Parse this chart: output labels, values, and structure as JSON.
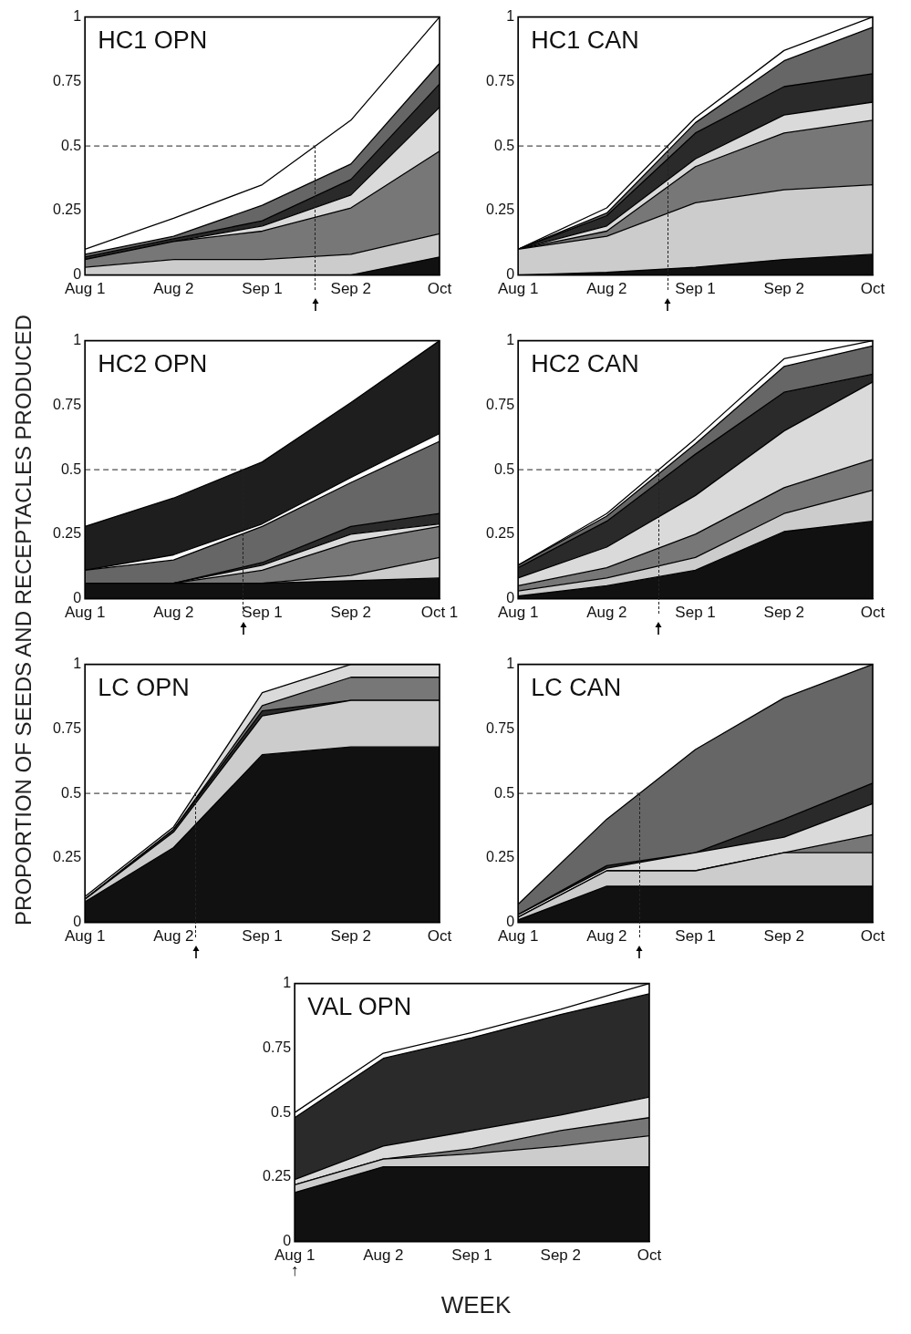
{
  "chart_data": [
    {
      "type": "area",
      "title": "HC1 OPN",
      "ylabel": "PROPORTION OF SEEDS AND RECEPTACLES PRODUCED",
      "stacked": true,
      "categories": [
        "Aug 1",
        "Aug 2",
        "Sep 1",
        "Sep 2",
        "Oct"
      ],
      "ylim": [
        0,
        1
      ],
      "yticks": [
        0,
        0.25,
        0.5,
        0.75,
        1
      ],
      "series": [
        {
          "color": "#111111",
          "values": [
            0,
            0,
            0,
            0,
            0.07
          ]
        },
        {
          "color": "#cccccc",
          "values": [
            0.03,
            0.06,
            0.06,
            0.08,
            0.09
          ]
        },
        {
          "color": "#777777",
          "values": [
            0.03,
            0.07,
            0.11,
            0.18,
            0.32
          ]
        },
        {
          "color": "#dadada",
          "values": [
            0,
            0,
            0.02,
            0.05,
            0.17
          ]
        },
        {
          "color": "#2a2a2a",
          "values": [
            0.01,
            0.01,
            0.02,
            0.06,
            0.09
          ]
        },
        {
          "color": "#666666",
          "values": [
            0.01,
            0.01,
            0.06,
            0.06,
            0.08
          ]
        },
        {
          "color": "#ffffff",
          "values": [
            0.02,
            0.07,
            0.08,
            0.17,
            0.18
          ]
        }
      ],
      "ref_lines": [
        {
          "axis": "y",
          "value": 0.5
        }
      ]
    },
    {
      "type": "area",
      "title": "HC1 CAN",
      "stacked": true,
      "categories": [
        "Aug 1",
        "Aug 2",
        "Sep 1",
        "Sep 2",
        "Oct"
      ],
      "ylim": [
        0,
        1
      ],
      "yticks": [
        0,
        0.25,
        0.5,
        0.75,
        1
      ],
      "series": [
        {
          "color": "#111111",
          "values": [
            0,
            0.01,
            0.03,
            0.06,
            0.08
          ]
        },
        {
          "color": "#cccccc",
          "values": [
            0.1,
            0.14,
            0.25,
            0.27,
            0.27
          ]
        },
        {
          "color": "#777777",
          "values": [
            0,
            0.02,
            0.14,
            0.22,
            0.25
          ]
        },
        {
          "color": "#dadada",
          "values": [
            0,
            0.02,
            0.03,
            0.07,
            0.07
          ]
        },
        {
          "color": "#2a2a2a",
          "values": [
            0,
            0.04,
            0.1,
            0.11,
            0.11
          ]
        },
        {
          "color": "#666666",
          "values": [
            0,
            0.01,
            0.04,
            0.1,
            0.18
          ]
        },
        {
          "color": "#ffffff",
          "values": [
            0,
            0.02,
            0.02,
            0.04,
            0.04
          ]
        }
      ],
      "ref_lines": [
        {
          "axis": "y",
          "value": 0.5
        }
      ]
    },
    {
      "type": "area",
      "title": "HC2 OPN",
      "stacked": true,
      "categories": [
        "Aug 1",
        "Aug 2",
        "Sep 1",
        "Sep 2",
        "Oct 1"
      ],
      "ylim": [
        0,
        1
      ],
      "yticks": [
        0,
        0.25,
        0.5,
        0.75,
        1
      ],
      "series": [
        {
          "color": "#111111",
          "values": [
            0.06,
            0.06,
            0.06,
            0.07,
            0.08
          ]
        },
        {
          "color": "#cccccc",
          "values": [
            0,
            0,
            0,
            0.02,
            0.08
          ]
        },
        {
          "color": "#777777",
          "values": [
            0,
            0,
            0.05,
            0.13,
            0.12
          ]
        },
        {
          "color": "#dadada",
          "values": [
            0,
            0,
            0.02,
            0.03,
            0.01
          ]
        },
        {
          "color": "#2a2a2a",
          "values": [
            0,
            0,
            0.01,
            0.03,
            0.04
          ]
        },
        {
          "color": "#666666",
          "values": [
            0.05,
            0.09,
            0.14,
            0.17,
            0.28
          ]
        },
        {
          "color": "#ffffff",
          "values": [
            0,
            0.02,
            0.01,
            0.02,
            0.03
          ]
        },
        {
          "color": "#1e1e1e",
          "values": [
            0.17,
            0.22,
            0.24,
            0.29,
            0.36
          ]
        }
      ],
      "ref_lines": [
        {
          "axis": "y",
          "value": 0.5
        }
      ]
    },
    {
      "type": "area",
      "title": "HC2 CAN",
      "stacked": true,
      "categories": [
        "Aug 1",
        "Aug 2",
        "Sep 1",
        "Sep 2",
        "Oct"
      ],
      "ylim": [
        0,
        1
      ],
      "yticks": [
        0,
        0.25,
        0.5,
        0.75,
        1
      ],
      "series": [
        {
          "color": "#111111",
          "values": [
            0.01,
            0.05,
            0.11,
            0.26,
            0.3
          ]
        },
        {
          "color": "#cccccc",
          "values": [
            0.02,
            0.03,
            0.05,
            0.07,
            0.12
          ]
        },
        {
          "color": "#777777",
          "values": [
            0.02,
            0.04,
            0.09,
            0.1,
            0.12
          ]
        },
        {
          "color": "#dadada",
          "values": [
            0.03,
            0.08,
            0.15,
            0.22,
            0.3
          ]
        },
        {
          "color": "#2a2a2a",
          "values": [
            0.04,
            0.1,
            0.16,
            0.15,
            0.03
          ]
        },
        {
          "color": "#666666",
          "values": [
            0.01,
            0.02,
            0.04,
            0.1,
            0.11
          ]
        },
        {
          "color": "#ffffff",
          "values": [
            0,
            0.01,
            0.02,
            0.03,
            0.02
          ]
        }
      ],
      "ref_lines": [
        {
          "axis": "y",
          "value": 0.5
        }
      ]
    },
    {
      "type": "area",
      "title": "LC OPN",
      "stacked": true,
      "categories": [
        "Aug 1",
        "Aug 2",
        "Sep 1",
        "Sep 2",
        "Oct"
      ],
      "ylim": [
        0,
        1
      ],
      "yticks": [
        0,
        0.25,
        0.5,
        0.75,
        1
      ],
      "series": [
        {
          "color": "#111111",
          "values": [
            0.08,
            0.29,
            0.65,
            0.68,
            0.68
          ]
        },
        {
          "color": "#cccccc",
          "values": [
            0.01,
            0.06,
            0.15,
            0.18,
            0.18
          ]
        },
        {
          "color": "#2a2a2a",
          "values": [
            0,
            0.01,
            0.02,
            0,
            0
          ]
        },
        {
          "color": "#777777",
          "values": [
            0,
            0,
            0.02,
            0.09,
            0.09
          ]
        },
        {
          "color": "#dadada",
          "values": [
            0.01,
            0.01,
            0.05,
            0.05,
            0.05
          ]
        }
      ],
      "ref_lines": [
        {
          "axis": "y",
          "value": 0.5
        }
      ]
    },
    {
      "type": "area",
      "title": "LC CAN",
      "stacked": true,
      "categories": [
        "Aug 1",
        "Aug 2",
        "Sep 1",
        "Sep 2",
        "Oct"
      ],
      "ylim": [
        0,
        1
      ],
      "yticks": [
        0,
        0.25,
        0.5,
        0.75,
        1
      ],
      "series": [
        {
          "color": "#111111",
          "values": [
            0.01,
            0.14,
            0.14,
            0.14,
            0.14
          ]
        },
        {
          "color": "#cccccc",
          "values": [
            0.01,
            0.06,
            0.06,
            0.13,
            0.13
          ]
        },
        {
          "color": "#777777",
          "values": [
            0,
            0,
            0,
            0,
            0.07
          ]
        },
        {
          "color": "#dadada",
          "values": [
            0.01,
            0.01,
            0.07,
            0.06,
            0.12
          ]
        },
        {
          "color": "#2a2a2a",
          "values": [
            0,
            0.01,
            0,
            0.07,
            0.08
          ]
        },
        {
          "color": "#666666",
          "values": [
            0.04,
            0.18,
            0.4,
            0.47,
            0.46
          ]
        }
      ],
      "ref_lines": [
        {
          "axis": "y",
          "value": 0.5
        }
      ]
    },
    {
      "type": "area",
      "title": "VAL OPN",
      "xlabel": "WEEK",
      "stacked": true,
      "categories": [
        "Aug 1",
        "Aug 2",
        "Sep 1",
        "Sep 2",
        "Oct"
      ],
      "ylim": [
        0,
        1
      ],
      "yticks": [
        0,
        0.25,
        0.5,
        0.75,
        1
      ],
      "series": [
        {
          "color": "#111111",
          "values": [
            0.19,
            0.29,
            0.29,
            0.29,
            0.29
          ]
        },
        {
          "color": "#cccccc",
          "values": [
            0.03,
            0.03,
            0.05,
            0.08,
            0.12
          ]
        },
        {
          "color": "#777777",
          "values": [
            0,
            0,
            0.02,
            0.06,
            0.07
          ]
        },
        {
          "color": "#dadada",
          "values": [
            0.02,
            0.05,
            0.07,
            0.06,
            0.08
          ]
        },
        {
          "color": "#2a2a2a",
          "values": [
            0.24,
            0.34,
            0.36,
            0.39,
            0.4
          ]
        },
        {
          "color": "#ffffff",
          "values": [
            0.02,
            0.02,
            0.02,
            0.02,
            0.04
          ]
        }
      ],
      "annotations": [
        "↑"
      ]
    }
  ]
}
